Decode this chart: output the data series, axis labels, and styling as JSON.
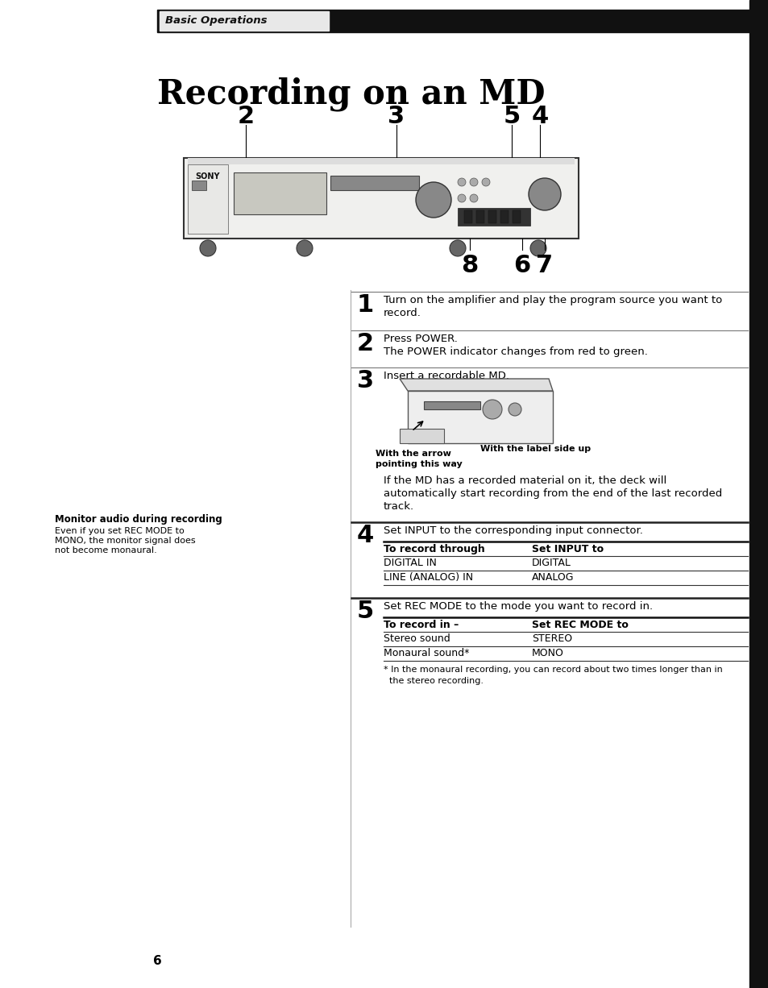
{
  "page_bg": "#ffffff",
  "header_bar_color": "#111111",
  "header_text": "Basic Operations",
  "title": "Recording on an MD",
  "right_bar_color": "#111111",
  "step1_text1": "Turn on the amplifier and play the program source you want to",
  "step1_text2": "record.",
  "step2_text1": "Press POWER.",
  "step2_text2": "The POWER indicator changes from red to green.",
  "step3_text1": "Insert a recordable MD.",
  "step3_caption1": "With the arrow",
  "step3_caption2": "pointing this way",
  "step3_caption3": "With the label side up",
  "step3_para1": "If the MD has a recorded material on it, the deck will",
  "step3_para2": "automatically start recording from the end of the last recorded",
  "step3_para3": "track.",
  "step4_text": "Set INPUT to the corresponding input connector.",
  "table4_header1": "To record through",
  "table4_header2": "Set INPUT to",
  "table4_row1_col1": "DIGITAL IN",
  "table4_row1_col2": "DIGITAL",
  "table4_row2_col1": "LINE (ANALOG) IN",
  "table4_row2_col2": "ANALOG",
  "step5_text": "Set REC MODE to the mode you want to record in.",
  "table5_header1": "To record in –",
  "table5_header2": "Set REC MODE to",
  "table5_row1_col1": "Stereo sound",
  "table5_row1_col2": "STEREO",
  "table5_row2_col1": "Monaural sound*",
  "table5_row2_col2": "MONO",
  "footnote": "* In the monaural recording, you can record about two times longer than in",
  "footnote2": "  the stereo recording.",
  "monitor_title": "Monitor audio during recording",
  "monitor_text1": "Even if you set REC MODE to",
  "monitor_text2": "MONO, the monitor signal does",
  "monitor_text3": "not become monaural.",
  "page_number": "6"
}
